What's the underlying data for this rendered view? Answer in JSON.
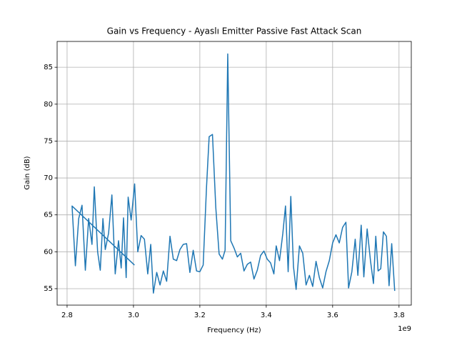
{
  "chart_data": {
    "type": "line",
    "title": "Gain vs Frequency - Ayaslı Emitter Passive Fast Attack Scan",
    "x_label": "Frequency (Hz)",
    "y_label": "Gain (dB)",
    "x_offset_label": "1e9",
    "x": [
      3003000000,
      2815000000,
      2825000000,
      2835000000,
      2845000000,
      2855000000,
      2865000000,
      2875000000,
      2882000000,
      2892000000,
      2900000000,
      2908000000,
      2915000000,
      2925000000,
      2935000000,
      2945000000,
      2955000000,
      2963000000,
      2970000000,
      2978000000,
      2984000000,
      2993000000,
      3003500000,
      3013000000,
      3023000000,
      3033000000,
      3043000000,
      3052000000,
      3060000000,
      3070000000,
      3080000000,
      3090000000,
      3100000000,
      3110000000,
      3120000000,
      3130000000,
      3140000000,
      3150000000,
      3160000000,
      3170000000,
      3180000000,
      3190000000,
      3200000000,
      3210000000,
      3220000000,
      3228000000,
      3238000000,
      3248000000,
      3258000000,
      3268000000,
      3276000000,
      3284000000,
      3293000000,
      3303000000,
      3313000000,
      3323000000,
      3333000000,
      3343000000,
      3353000000,
      3363000000,
      3373000000,
      3383000000,
      3393000000,
      3403000000,
      3413000000,
      3423000000,
      3430000000,
      3440000000,
      3450000000,
      3458000000,
      3466000000,
      3474000000,
      3482000000,
      3490000000,
      3500000000,
      3510000000,
      3520000000,
      3530000000,
      3540000000,
      3550000000,
      3560000000,
      3570000000,
      3580000000,
      3590000000,
      3600000000,
      3610000000,
      3620000000,
      3630000000,
      3640000000,
      3648000000,
      3658000000,
      3668000000,
      3676000000,
      3686000000,
      3694000000,
      3704000000,
      3714000000,
      3723000000,
      3730000000,
      3737000000,
      3745000000,
      3753000000,
      3762000000,
      3770000000,
      3778000000,
      3787000000
    ],
    "series": [
      {
        "name": "Gain",
        "color": "#1f77b4",
        "values": [
          58.2,
          66.2,
          58.1,
          64.5,
          66.3,
          57.5,
          64.5,
          61.0,
          68.8,
          60.0,
          57.5,
          64.5,
          60.3,
          62.5,
          67.7,
          57.0,
          61.5,
          57.8,
          64.6,
          56.5,
          67.4,
          64.3,
          69.2,
          60.0,
          62.2,
          61.7,
          57.0,
          61.0,
          54.4,
          57.2,
          55.5,
          57.4,
          56.0,
          62.1,
          59.0,
          58.8,
          60.3,
          61.0,
          61.1,
          57.2,
          60.2,
          57.4,
          57.3,
          58.2,
          68.7,
          75.6,
          75.9,
          66.0,
          59.7,
          59.0,
          60.2,
          86.8,
          61.5,
          60.5,
          59.3,
          59.8,
          57.4,
          58.3,
          58.6,
          56.3,
          57.5,
          59.5,
          60.1,
          59.0,
          58.5,
          57.0,
          60.8,
          58.8,
          62.5,
          66.2,
          57.3,
          67.5,
          58.0,
          54.9,
          60.8,
          59.8,
          55.5,
          56.8,
          55.3,
          58.7,
          56.5,
          55.1,
          57.3,
          58.8,
          61.2,
          62.3,
          61.2,
          63.3,
          64.0,
          55.1,
          57.3,
          61.7,
          56.8,
          63.6,
          56.6,
          63.1,
          58.8,
          55.7,
          62.1,
          57.4,
          57.7,
          62.7,
          62.1,
          55.4,
          61.1,
          54.7
        ]
      }
    ],
    "xlim": [
      2770000000,
      3837000000
    ],
    "ylim": [
      52.77,
      88.5
    ],
    "xticks": [
      {
        "value": 2800000000,
        "label": "2.8"
      },
      {
        "value": 3000000000,
        "label": "3.0"
      },
      {
        "value": 3200000000,
        "label": "3.2"
      },
      {
        "value": 3400000000,
        "label": "3.4"
      },
      {
        "value": 3600000000,
        "label": "3.6"
      },
      {
        "value": 3800000000,
        "label": "3.8"
      }
    ],
    "yticks": [
      55,
      60,
      65,
      70,
      75,
      80,
      85
    ],
    "grid": true
  }
}
